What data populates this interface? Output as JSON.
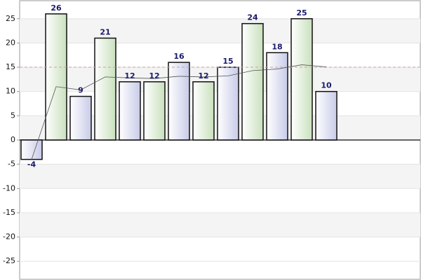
{
  "chart_data": {
    "type": "bar",
    "values": [
      -4,
      26,
      9,
      21,
      12,
      12,
      16,
      12,
      15,
      24,
      18,
      25,
      10
    ],
    "colors": [
      "#d8daf0",
      "#d8e9cf"
    ],
    "average_line": {
      "values": [
        -4,
        11,
        10.33,
        13,
        12.8,
        12.67,
        13.14,
        13,
        13.22,
        14.3,
        14.64,
        15.5,
        15.08
      ],
      "color": "#555555"
    },
    "reference_line": {
      "value": 15,
      "color": "#c9a0a0"
    },
    "ylim": [
      -28.5,
      28.5
    ],
    "yticks": [
      25,
      20,
      15,
      10,
      5,
      0,
      -5,
      -10,
      -15,
      -20,
      -25
    ],
    "grid": true
  }
}
